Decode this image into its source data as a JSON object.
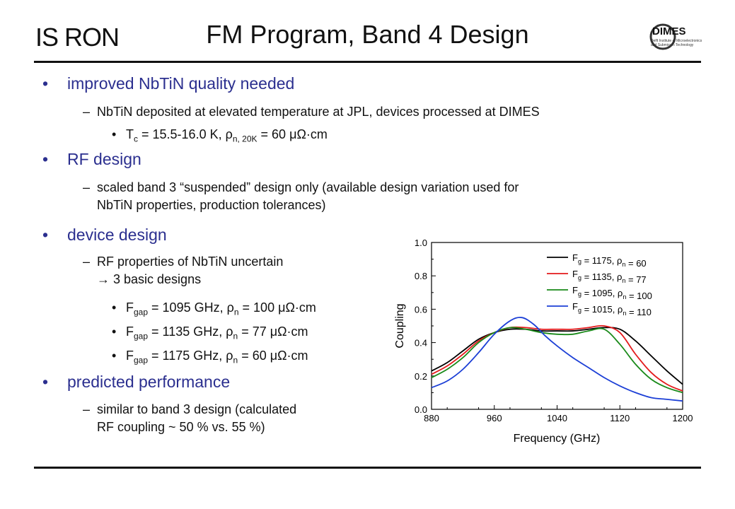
{
  "header": {
    "logo_left": "IS RON",
    "title": "FM Program, Band 4 Design",
    "logo_right": {
      "main": "DIMES",
      "line1": "Delft Institute of Microelectronics",
      "line2": "and Submicron Technology"
    }
  },
  "content": {
    "b1": {
      "text": "improved NbTiN quality needed"
    },
    "b1_sub1": "NbTiN deposited at elevated temperature at JPL, devices processed at DIMES",
    "b1_subsub": {
      "a": "T",
      "a_sub": "c",
      "b": " = 15.5-16.0 K, ρ",
      "b_sub": "n, 20K",
      "c": " = 60 μΩ·cm"
    },
    "b2": {
      "text": "RF design"
    },
    "b2_sub1_line1": "scaled band 3 “suspended” design only (available design variation used for",
    "b2_sub1_line2": "NbTiN properties, production tolerances)",
    "b3": {
      "text": "device design"
    },
    "b3_sub1_line1": "RF properties of NbTiN uncertain",
    "b3_sub1_line2": "→ 3 basic designs",
    "b3_items": [
      {
        "f": "F",
        "f_sub": "gap",
        "mid": " = 1095 GHz, ρ",
        "r_sub": "n",
        "end": " = 100 μΩ·cm"
      },
      {
        "f": "F",
        "f_sub": "gap",
        "mid": " = 1135 GHz, ρ",
        "r_sub": "n",
        "end": " = 77 μΩ·cm"
      },
      {
        "f": "F",
        "f_sub": "gap",
        "mid": " = 1175 GHz, ρ",
        "r_sub": "n",
        "end": " = 60 μΩ·cm"
      }
    ],
    "b4": {
      "text": "predicted performance"
    },
    "b4_sub1_line1": "similar to band 3 design (calculated",
    "b4_sub1_line2": "RF coupling ~ 50 % vs. 55 %)"
  },
  "chart_data": {
    "type": "line",
    "xlabel": "Frequency (GHz)",
    "ylabel": "Coupling",
    "xlim": [
      880,
      1200
    ],
    "ylim": [
      0.0,
      1.0
    ],
    "xticks": [
      880,
      960,
      1040,
      1120,
      1200
    ],
    "yticks": [
      0.0,
      0.2,
      0.4,
      0.6,
      0.8,
      1.0
    ],
    "legend_position": "top-right",
    "series": [
      {
        "name": "F_g = 1175, ρ_n = 60",
        "color": "#000000",
        "x": [
          880,
          900,
          920,
          940,
          960,
          980,
          1000,
          1020,
          1040,
          1060,
          1080,
          1100,
          1120,
          1140,
          1160,
          1180,
          1200
        ],
        "y": [
          0.23,
          0.28,
          0.35,
          0.42,
          0.46,
          0.48,
          0.48,
          0.47,
          0.47,
          0.47,
          0.48,
          0.49,
          0.48,
          0.41,
          0.32,
          0.23,
          0.15
        ]
      },
      {
        "name": "F_g = 1135, ρ_n = 77",
        "color": "#e31a1c",
        "x": [
          880,
          900,
          920,
          940,
          960,
          980,
          1000,
          1020,
          1040,
          1060,
          1080,
          1100,
          1120,
          1140,
          1160,
          1180,
          1200
        ],
        "y": [
          0.21,
          0.26,
          0.33,
          0.41,
          0.46,
          0.49,
          0.49,
          0.48,
          0.48,
          0.48,
          0.49,
          0.5,
          0.46,
          0.33,
          0.22,
          0.15,
          0.11
        ]
      },
      {
        "name": "F_g = 1095, ρ_n = 100",
        "color": "#1a8a1a",
        "x": [
          880,
          900,
          920,
          940,
          960,
          980,
          1000,
          1020,
          1040,
          1060,
          1080,
          1100,
          1120,
          1140,
          1160,
          1180,
          1200
        ],
        "y": [
          0.19,
          0.24,
          0.31,
          0.4,
          0.46,
          0.49,
          0.48,
          0.46,
          0.45,
          0.45,
          0.47,
          0.48,
          0.39,
          0.27,
          0.18,
          0.13,
          0.1
        ]
      },
      {
        "name": "F_g = 1015, ρ_n = 110",
        "color": "#1c3fd6",
        "x": [
          880,
          900,
          920,
          940,
          960,
          980,
          995,
          1010,
          1025,
          1040,
          1060,
          1080,
          1100,
          1120,
          1140,
          1160,
          1180,
          1200
        ],
        "y": [
          0.13,
          0.17,
          0.24,
          0.34,
          0.45,
          0.53,
          0.55,
          0.51,
          0.44,
          0.38,
          0.31,
          0.25,
          0.19,
          0.14,
          0.1,
          0.07,
          0.06,
          0.05
        ]
      }
    ],
    "legend_labels": [
      {
        "a": "F",
        "a_sub": "g",
        "b": " = 1175, ρ",
        "b_sub": "n",
        "c": " = 60"
      },
      {
        "a": "F",
        "a_sub": "g",
        "b": " = 1135, ρ",
        "b_sub": "n",
        "c": " = 77"
      },
      {
        "a": "F",
        "a_sub": "g",
        "b": " = 1095, ρ",
        "b_sub": "n",
        "c": " = 100"
      },
      {
        "a": "F",
        "a_sub": "g",
        "b": " = 1015, ρ",
        "b_sub": "n",
        "c": " = 110"
      }
    ]
  }
}
